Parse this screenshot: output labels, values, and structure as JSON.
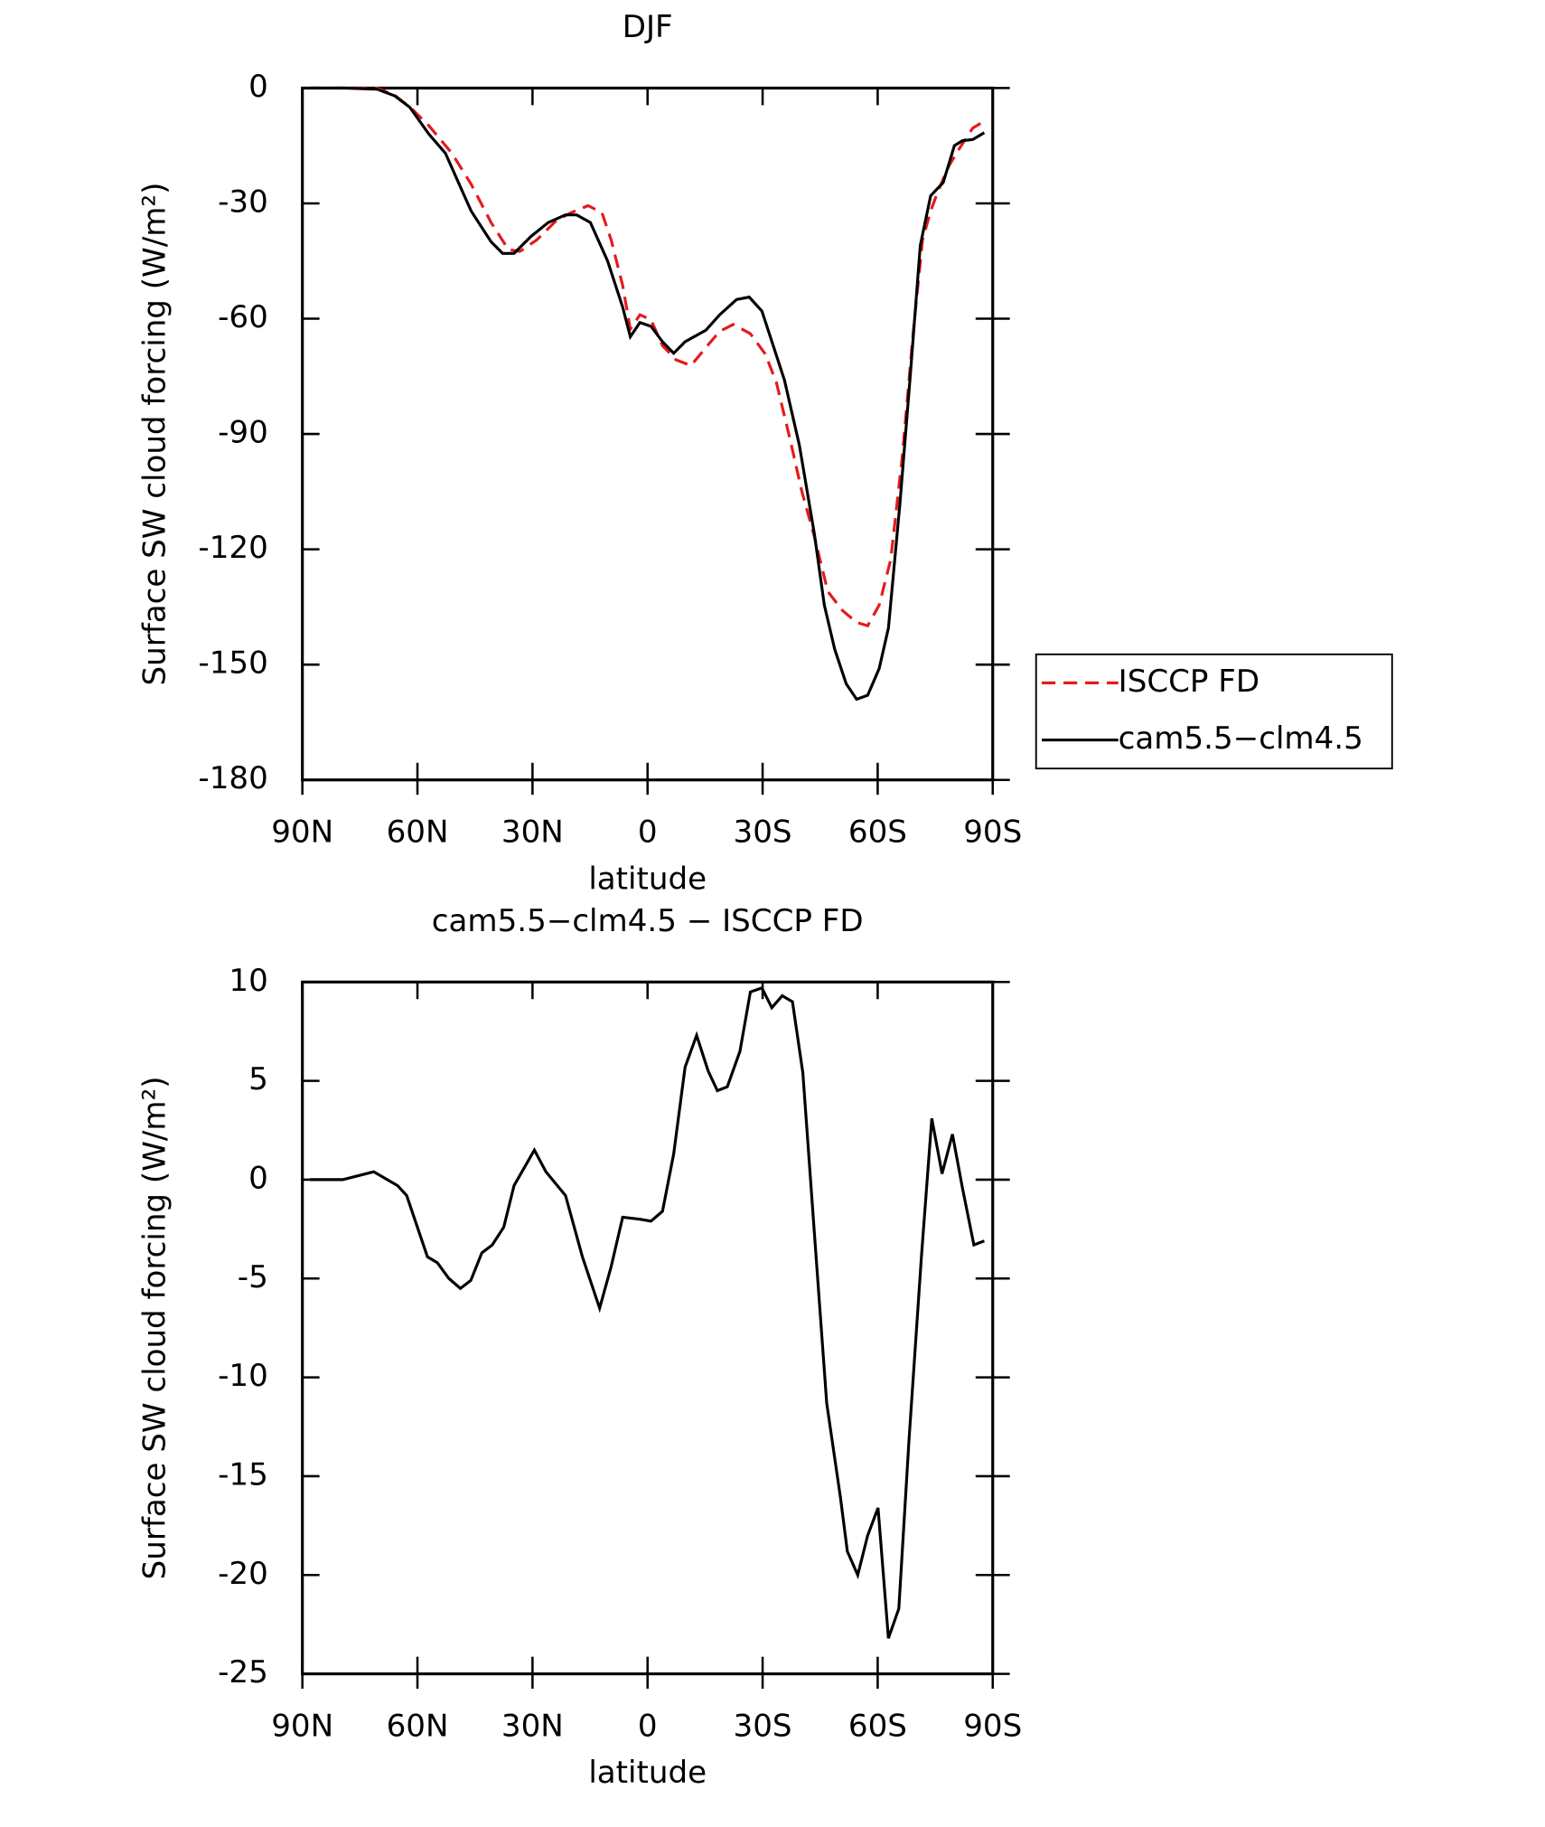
{
  "chart_data": [
    {
      "type": "line",
      "title": "DJF",
      "xlabel": "latitude",
      "ylabel": "Surface SW cloud forcing (W/m²)",
      "xlim": [
        90,
        -90
      ],
      "xticks": [
        {
          "value": 90,
          "label": "90N"
        },
        {
          "value": 60,
          "label": "60N"
        },
        {
          "value": 30,
          "label": "30N"
        },
        0,
        {
          "value": -30,
          "label": "30S"
        },
        {
          "value": -60,
          "label": "60S"
        },
        {
          "value": -90,
          "label": "90S"
        }
      ],
      "ylim": [
        -180,
        0
      ],
      "yticks": [
        0,
        -30,
        -60,
        -90,
        -120,
        -150,
        -180
      ],
      "legend": "outside-right",
      "series": [
        {
          "name": "ISCCP FD",
          "color": "#e41a1c",
          "linestyle": "dashed",
          "x": [
            88,
            70.5,
            66,
            61.6,
            57,
            51,
            46,
            40.8,
            36.3,
            33.3,
            28.9,
            23.8,
            19.9,
            15.5,
            11.9,
            9.5,
            6.5,
            4.5,
            2,
            -0.9,
            -3.9,
            -7.4,
            -11.3,
            -15.8,
            -18.8,
            -22.3,
            -26.8,
            -30.7,
            -33.6,
            -37.2,
            -40.2,
            -43.5,
            -47,
            -50.9,
            -54.5,
            -57.4,
            -60.4,
            -63.4,
            -66.4,
            -69.3,
            -71.7,
            -73.8,
            -75.9,
            -78.6,
            -81.3,
            -84.8,
            -87.8
          ],
          "values": [
            0,
            0,
            -1.8,
            -5.3,
            -9.8,
            -17,
            -25,
            -35,
            -42,
            -42.5,
            -39.5,
            -34.5,
            -32.4,
            -30.6,
            -32.4,
            -39.5,
            -51.4,
            -62.7,
            -59,
            -60.3,
            -67,
            -70.7,
            -72.2,
            -66.8,
            -63.3,
            -61.5,
            -63.9,
            -69.2,
            -76.6,
            -91.5,
            -104.8,
            -116.7,
            -131,
            -136,
            -139,
            -139.9,
            -134.5,
            -122.7,
            -96,
            -63.3,
            -39.5,
            -32,
            -26.4,
            -20.2,
            -15.7,
            -10.4,
            -8.6
          ]
        },
        {
          "name": "cam5.5−clm4.5",
          "color": "#000000",
          "linestyle": "solid",
          "x": [
            88,
            79.5,
            70.5,
            66,
            62,
            57,
            52.7,
            46,
            40.8,
            37.8,
            34.8,
            30.4,
            25.9,
            21.4,
            18.5,
            14.9,
            10.4,
            6.5,
            4.5,
            2,
            -0.9,
            -3.9,
            -6.8,
            -9.8,
            -15.2,
            -18.8,
            -23.2,
            -26.5,
            -29.8,
            -32.1,
            -35.7,
            -39.6,
            -43.5,
            -46.1,
            -48.8,
            -51.8,
            -54.5,
            -57.4,
            -60.4,
            -62.8,
            -65.8,
            -68.5,
            -71.1,
            -73.8,
            -77.1,
            -80,
            -82.1,
            -84.8,
            -87.8
          ],
          "values": [
            0,
            0,
            -0.3,
            -2,
            -5,
            -12,
            -17,
            -32,
            -40,
            -43,
            -43,
            -38.6,
            -35,
            -33,
            -33,
            -35,
            -45,
            -57,
            -64.7,
            -61,
            -62,
            -66,
            -69,
            -66,
            -63,
            -59,
            -55,
            -54.4,
            -58,
            -65,
            -76,
            -93,
            -116,
            -134.5,
            -146,
            -155,
            -159,
            -158,
            -151,
            -140.5,
            -108,
            -75,
            -41,
            -28,
            -24.6,
            -15,
            -13.7,
            -13.4,
            -11.6
          ]
        }
      ]
    },
    {
      "type": "line",
      "title": "cam5.5−clm4.5 − ISCCP FD",
      "xlabel": "latitude",
      "ylabel": "Surface SW cloud forcing (W/m²)",
      "xlim": [
        90,
        -90
      ],
      "xticks": [
        {
          "value": 90,
          "label": "90N"
        },
        {
          "value": 60,
          "label": "60N"
        },
        {
          "value": 30,
          "label": "30N"
        },
        0,
        {
          "value": -30,
          "label": "30S"
        },
        {
          "value": -60,
          "label": "60S"
        },
        {
          "value": -90,
          "label": "90S"
        }
      ],
      "ylim": [
        -25,
        10
      ],
      "yticks": [
        10,
        5,
        0,
        -5,
        -10,
        -15,
        -20,
        -25
      ],
      "series": [
        {
          "color": "#000000",
          "linestyle": "solid",
          "x": [
            88,
            82.6,
            79.5,
            71.4,
            65.2,
            62.8,
            57.4,
            54.8,
            51.8,
            48.8,
            46.1,
            43.2,
            40.5,
            37.5,
            34.8,
            29.5,
            26.5,
            21.4,
            17,
            12.5,
            9.5,
            6.5,
            2,
            -0.9,
            -3.9,
            -6.8,
            -9.8,
            -12.8,
            -15.8,
            -18.2,
            -20.8,
            -24.1,
            -26.8,
            -29.8,
            -32.4,
            -35.1,
            -37.8,
            -40.5,
            -43.5,
            -46.7,
            -50.3,
            -52.1,
            -54.8,
            -57.4,
            -60.1,
            -62.8,
            -65.5,
            -68.2,
            -71.4,
            -74.1,
            -76.8,
            -79.5,
            -82.1,
            -85.1,
            -87.8
          ],
          "values": [
            0,
            0,
            0,
            0.4,
            -0.3,
            -0.8,
            -3.9,
            -4.2,
            -5,
            -5.5,
            -5.1,
            -3.7,
            -3.3,
            -2.4,
            -0.3,
            1.5,
            0.4,
            -0.8,
            -3.9,
            -6.5,
            -4.4,
            -1.9,
            -2,
            -2.1,
            -1.6,
            1.3,
            5.7,
            7.3,
            5.5,
            4.5,
            4.7,
            6.5,
            9.5,
            9.7,
            8.7,
            9.3,
            9,
            5.4,
            -2.7,
            -11.3,
            -16.1,
            -18.8,
            -20,
            -18,
            -16.6,
            -23.2,
            -21.7,
            -13.1,
            -3.9,
            3.1,
            0.3,
            2.3,
            -0.4,
            -3.3,
            -3.1
          ]
        }
      ]
    }
  ]
}
